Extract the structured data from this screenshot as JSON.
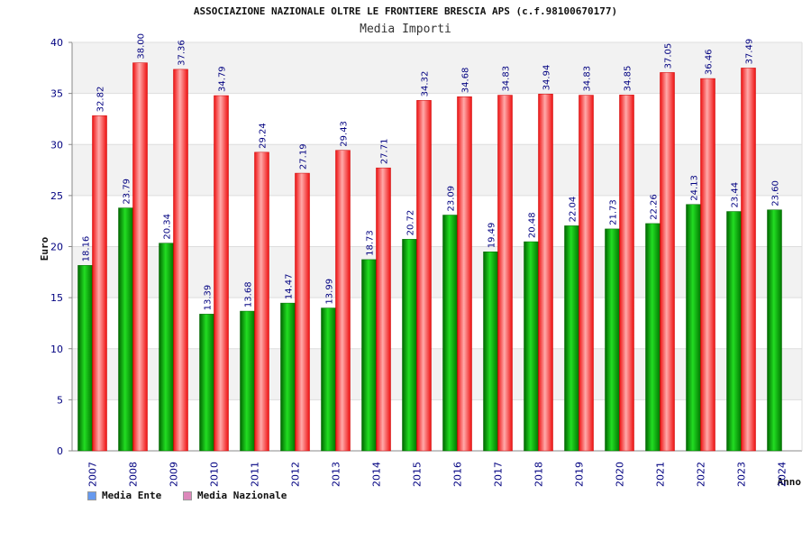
{
  "chart_data": {
    "type": "bar",
    "title": "ASSOCIAZIONE NAZIONALE OLTRE LE FRONTIERE BRESCIA APS (c.f.98100670177)",
    "subtitle": "Media Importi",
    "xlabel": "Anno",
    "ylabel": "Euro",
    "ylim": [
      0,
      40
    ],
    "yticks": [
      0,
      5,
      10,
      15,
      20,
      25,
      30,
      35,
      40
    ],
    "grid": true,
    "legend_position": "bottom-left",
    "categories": [
      "2007",
      "2008",
      "2009",
      "2010",
      "2011",
      "2012",
      "2013",
      "2014",
      "2015",
      "2016",
      "2017",
      "2018",
      "2019",
      "2020",
      "2021",
      "2022",
      "2023",
      "2024"
    ],
    "series": [
      {
        "name": "Media Ente",
        "color": "#00aa00",
        "legend_color": "#6699ee",
        "values": [
          18.16,
          23.79,
          20.34,
          13.39,
          13.68,
          14.47,
          13.99,
          18.73,
          20.72,
          23.09,
          19.49,
          20.48,
          22.04,
          21.73,
          22.26,
          24.13,
          23.44,
          23.6
        ],
        "labels": [
          "18.16",
          "23.79",
          "20.34",
          "13.39",
          "13.68",
          "14.47",
          "13.99",
          "18.73",
          "20.72",
          "23.09",
          "19.49",
          "20.48",
          "22.04",
          "21.73",
          "22.26",
          "24.13",
          "23.44",
          "23.60"
        ]
      },
      {
        "name": "Media Nazionale",
        "color": "#ee1111",
        "legend_color": "#dd88bb",
        "values": [
          32.82,
          38.0,
          37.36,
          34.79,
          29.24,
          27.19,
          29.43,
          27.71,
          34.32,
          34.68,
          34.83,
          34.94,
          34.83,
          34.85,
          37.05,
          36.46,
          37.49,
          null
        ],
        "labels": [
          "32.82",
          "38.00",
          "37.36",
          "34.79",
          "29.24",
          "27.19",
          "29.43",
          "27.71",
          "34.32",
          "34.68",
          "34.83",
          "34.94",
          "34.83",
          "34.85",
          "37.05",
          "36.46",
          "37.49",
          ""
        ]
      }
    ]
  }
}
